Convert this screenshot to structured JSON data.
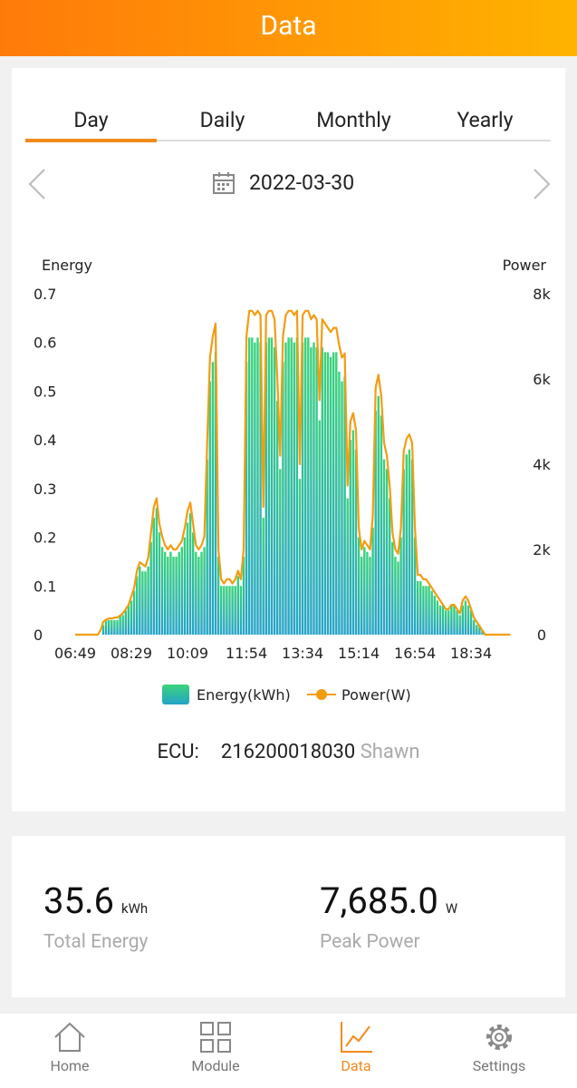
{
  "header": {
    "title": "Data"
  },
  "tabs": [
    "Day",
    "Daily",
    "Monthly",
    "Yearly"
  ],
  "active_tab": 0,
  "date": "2022-03-30",
  "chart_data": {
    "type": "combo",
    "y_label": "Energy",
    "y2_label": "Power",
    "categories": [
      "06:49",
      null,
      null,
      null,
      null,
      null,
      null,
      null,
      null,
      null,
      null,
      null,
      null,
      null,
      null,
      null,
      null,
      null,
      null,
      null,
      "08:29",
      null,
      null,
      null,
      null,
      null,
      null,
      null,
      null,
      null,
      null,
      null,
      null,
      null,
      null,
      null,
      null,
      null,
      null,
      null,
      "10:09",
      null,
      null,
      null,
      null,
      null,
      null,
      null,
      null,
      null,
      null,
      null,
      null,
      null,
      null,
      null,
      null,
      null,
      null,
      null,
      null,
      "11:54",
      null,
      null,
      null,
      null,
      null,
      null,
      null,
      null,
      null,
      null,
      null,
      null,
      null,
      null,
      null,
      null,
      null,
      null,
      null,
      "13:34",
      null,
      null,
      null,
      null,
      null,
      null,
      null,
      null,
      null,
      null,
      null,
      null,
      null,
      null,
      null,
      null,
      null,
      null,
      null,
      "15:14",
      null,
      null,
      null,
      null,
      null,
      null,
      null,
      null,
      null,
      null,
      null,
      null,
      null,
      null,
      null,
      null,
      null,
      null,
      null,
      "16:54",
      null,
      null,
      null,
      null,
      null,
      null,
      null,
      null,
      null,
      null,
      null,
      null,
      null,
      null,
      null,
      null,
      null,
      null,
      null,
      "18:34",
      null,
      null,
      null,
      null,
      null,
      null,
      null,
      null,
      null,
      null,
      null,
      null,
      null,
      null
    ],
    "series": [
      {
        "name": "Energy(kWh)",
        "type": "bar",
        "gradient": [
          "#3ad37a",
          "#25a3c8"
        ],
        "values": [
          0,
          0,
          0,
          0,
          0,
          0,
          0,
          0,
          0,
          0,
          0.02,
          0.03,
          0.03,
          0.03,
          0.03,
          0.03,
          0.04,
          0.04,
          0.05,
          0.06,
          0.07,
          0.09,
          0.12,
          0.14,
          0.13,
          0.13,
          0.14,
          0.19,
          0.24,
          0.26,
          0.21,
          0.18,
          0.17,
          0.16,
          0.17,
          0.16,
          0.16,
          0.17,
          0.18,
          0.2,
          0.23,
          0.25,
          0.21,
          0.17,
          0.16,
          0.17,
          0.18,
          0.36,
          0.52,
          0.56,
          0.58,
          0.16,
          0.1,
          0.1,
          0.1,
          0.1,
          0.1,
          0.1,
          0.12,
          0.1,
          0.16,
          0.56,
          0.61,
          0.61,
          0.6,
          0.61,
          0.6,
          0.24,
          0.6,
          0.61,
          0.61,
          0.59,
          0.48,
          0.34,
          0.56,
          0.6,
          0.61,
          0.61,
          0.6,
          0.61,
          0.32,
          0.6,
          0.61,
          0.61,
          0.59,
          0.6,
          0.59,
          0.44,
          0.59,
          0.58,
          0.58,
          0.57,
          0.58,
          0.58,
          0.54,
          0.52,
          0.53,
          0.28,
          0.4,
          0.42,
          0.38,
          0.2,
          0.16,
          0.18,
          0.17,
          0.16,
          0.22,
          0.46,
          0.49,
          0.45,
          0.36,
          0.34,
          0.28,
          0.19,
          0.16,
          0.15,
          0.2,
          0.34,
          0.37,
          0.38,
          0.36,
          0.2,
          0.11,
          0.11,
          0.1,
          0.1,
          0.1,
          0.09,
          0.08,
          0.07,
          0.06,
          0.06,
          0.05,
          0.05,
          0.06,
          0.06,
          0.05,
          0.04,
          0.06,
          0.07,
          0.06,
          0.05,
          0.03,
          0.02,
          0.02,
          0.01,
          0,
          0,
          0,
          0,
          0,
          0,
          0,
          0,
          0,
          0
        ]
      },
      {
        "name": "Power(W)",
        "type": "line",
        "axis": "y2",
        "color": "#f39c12",
        "values": [
          0,
          0,
          0,
          0,
          0,
          0,
          0,
          0,
          0,
          100,
          300,
          350,
          380,
          380,
          400,
          400,
          450,
          500,
          600,
          700,
          900,
          1100,
          1500,
          1700,
          1650,
          1600,
          1800,
          2400,
          3000,
          3200,
          2600,
          2300,
          2100,
          2000,
          2100,
          2000,
          2000,
          2100,
          2200,
          2500,
          2900,
          3100,
          2600,
          2100,
          2000,
          2100,
          2300,
          4500,
          6500,
          7000,
          7300,
          2000,
          1300,
          1200,
          1300,
          1300,
          1200,
          1300,
          1500,
          1300,
          2000,
          7000,
          7600,
          7600,
          7500,
          7600,
          7500,
          3000,
          7500,
          7600,
          7600,
          7400,
          6000,
          4200,
          7000,
          7500,
          7600,
          7600,
          7500,
          7600,
          4000,
          7500,
          7600,
          7600,
          7400,
          7500,
          7400,
          5500,
          7400,
          7300,
          7200,
          7100,
          7200,
          7200,
          6800,
          6500,
          6600,
          3500,
          5000,
          5200,
          4800,
          2500,
          2000,
          2200,
          2100,
          2000,
          2800,
          5800,
          6100,
          5600,
          4500,
          4200,
          3500,
          2400,
          2000,
          1900,
          2500,
          4300,
          4600,
          4700,
          4500,
          2500,
          1400,
          1400,
          1300,
          1300,
          1200,
          1100,
          1000,
          900,
          800,
          700,
          600,
          600,
          700,
          700,
          600,
          500,
          800,
          900,
          800,
          600,
          400,
          300,
          200,
          100,
          0,
          0,
          0,
          0,
          0,
          0,
          0,
          0,
          0,
          0
        ]
      }
    ],
    "ylim": [
      0,
      0.7
    ],
    "yticks": [
      0,
      0.1,
      0.2,
      0.3,
      0.4,
      0.5,
      0.6,
      0.7
    ],
    "y2lim": [
      0,
      8000
    ],
    "y2ticks": [
      0,
      {
        "value": 2000,
        "label": "2k"
      },
      {
        "value": 4000,
        "label": "4k"
      },
      {
        "value": 6000,
        "label": "6k"
      },
      {
        "value": 8000,
        "label": "8k"
      }
    ],
    "grid": false,
    "legend": "bottom"
  },
  "ecu": {
    "label": "ECU:",
    "id": "216200018030",
    "name": "Shawn"
  },
  "stats": [
    {
      "value": "35.6",
      "unit": "kWh",
      "label": "Total Energy"
    },
    {
      "value": "7,685.0",
      "unit": "W",
      "label": "Peak Power"
    }
  ],
  "nav": [
    {
      "label": "Home"
    },
    {
      "label": "Module"
    },
    {
      "label": "Data"
    },
    {
      "label": "Settings"
    }
  ],
  "active_nav": 2
}
